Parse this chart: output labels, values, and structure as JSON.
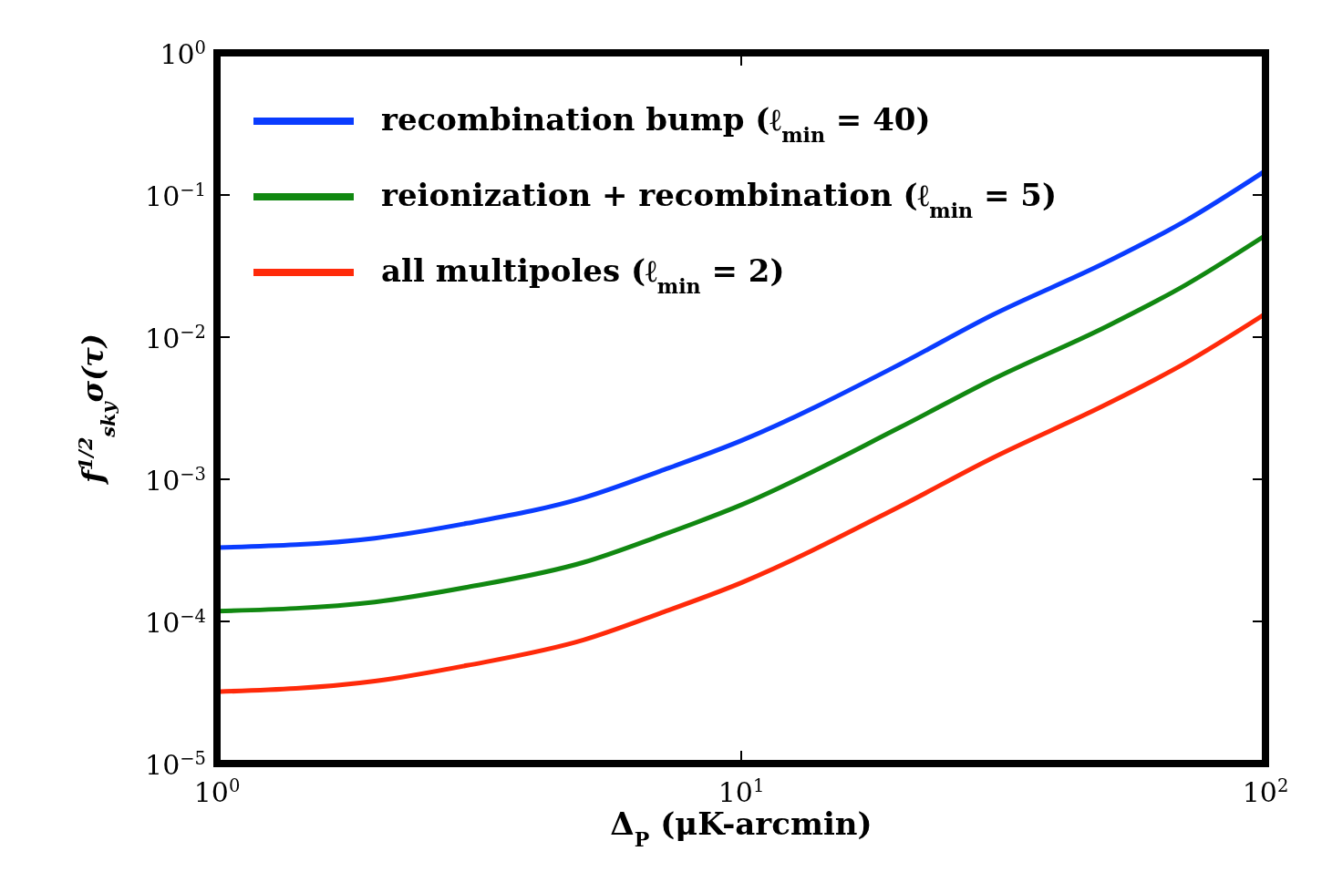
{
  "chart_data": {
    "type": "line",
    "xlabel": "Δ$_{P}$ (μK-arcmin)",
    "ylabel": "f$^{1/2}$$_{sky}$σ(τ)",
    "log": "xy",
    "grid": false,
    "legend": "top left",
    "marker": "none",
    "line_style": "solid",
    "x": [
      1,
      2,
      3,
      5,
      7,
      10,
      20,
      30,
      50,
      70,
      100
    ],
    "xlim": [
      1,
      100
    ],
    "xticks": [
      {
        "value": 1,
        "label": "10$^{0}$"
      },
      {
        "value": 10,
        "label": "10$^{1}$"
      },
      {
        "value": 100,
        "label": "10$^{2}$"
      }
    ],
    "ylim": [
      1e-05,
      1
    ],
    "yticks": [
      {
        "value": 1e-05,
        "label": "10$^{−5}$"
      },
      {
        "value": 0.0001,
        "label": "10$^{−4}$"
      },
      {
        "value": 0.001,
        "label": "10$^{−3}$"
      },
      {
        "value": 0.01,
        "label": "10$^{−2}$"
      },
      {
        "value": 0.1,
        "label": "10$^{−1}$"
      },
      {
        "value": 1,
        "label": "10$^{0}$"
      }
    ],
    "series": [
      {
        "name": "recombination bump (ℓ$_{min}$ = 40)",
        "color": "#0a3cff",
        "values": [
          0.00033,
          0.000385,
          0.00049,
          0.00074,
          0.00114,
          0.00187,
          0.0064,
          0.0142,
          0.034,
          0.065,
          0.148
        ]
      },
      {
        "name": "reionization + recombination (ℓ$_{min}$ = 5)",
        "color": "#118811",
        "values": [
          0.000118,
          0.000137,
          0.000174,
          0.00026,
          0.0004,
          0.00066,
          0.0023,
          0.005,
          0.012,
          0.023,
          0.052
        ]
      },
      {
        "name": "all multipoles (ℓ$_{min}$ = 2)",
        "color": "#ff2a0a",
        "values": [
          3.2e-05,
          3.8e-05,
          4.9e-05,
          7.4e-05,
          0.000114,
          0.000187,
          0.00064,
          0.0014,
          0.0034,
          0.0065,
          0.0146
        ]
      }
    ]
  }
}
